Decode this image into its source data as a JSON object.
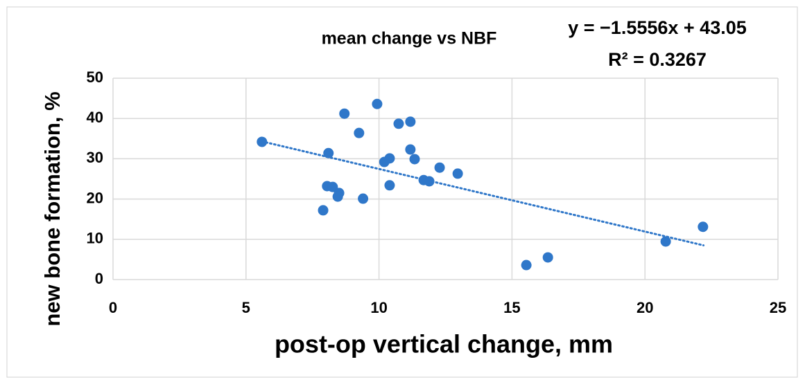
{
  "chart_data": {
    "type": "scatter",
    "title": "mean change vs NBF",
    "annotations": [
      "y = −1.5556x + 43.05",
      "R² = 0.3267"
    ],
    "xlabel": "post-op vertical change, mm",
    "ylabel": "new bone formation, %",
    "color": "#2f77c9",
    "grid": true,
    "xlim": [
      0,
      25
    ],
    "xticks": [
      0,
      5,
      10,
      15,
      20,
      25
    ],
    "ylim": [
      0,
      50
    ],
    "yticks": [
      0,
      10,
      20,
      30,
      40,
      50
    ],
    "x": [
      5.6,
      8.1,
      8.7,
      7.9,
      8.05,
      8.26,
      8.5,
      8.45,
      9.25,
      9.4,
      9.93,
      10.2,
      10.4,
      10.4,
      10.74,
      11.18,
      11.18,
      11.34,
      11.68,
      11.89,
      12.28,
      12.96,
      15.54,
      16.35,
      20.78,
      22.18
    ],
    "values": [
      34.2,
      31.4,
      41.2,
      17.2,
      23.2,
      23.0,
      21.5,
      20.6,
      36.4,
      20.1,
      43.6,
      29.2,
      30.1,
      23.4,
      38.7,
      39.2,
      32.3,
      29.9,
      24.7,
      24.4,
      27.8,
      26.3,
      3.6,
      5.5,
      9.45,
      13.1
    ],
    "trendline": {
      "x": [
        5.6,
        22.2
      ],
      "y": [
        34.3,
        8.5
      ]
    }
  }
}
